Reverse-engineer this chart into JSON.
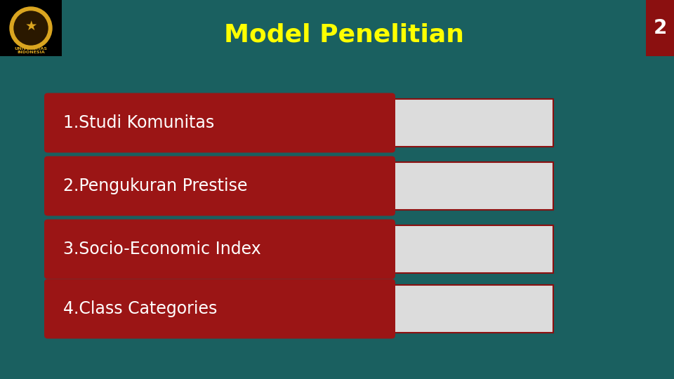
{
  "background_color": "#1a6060",
  "title": "Model Penelitian",
  "title_color": "#FFFF00",
  "title_fontsize": 26,
  "title_fontstyle": "normal",
  "title_fontweight": "bold",
  "page_number": "2",
  "page_number_bg": "#8B1010",
  "page_number_color": "#ffffff",
  "items": [
    "1.Studi Komunitas",
    "2.Pengukuran Prestise",
    "3.Socio-Economic Index",
    "4.Class Categories"
  ],
  "item_box_color": "#9B1515",
  "item_text_color": "#ffffff",
  "item_strip_color": "#dcdcdc",
  "item_strip_border": "#8B1010",
  "item_text_fontsize": 17,
  "logo_bg": "#000000",
  "logo_emblem_color": "#DAA520"
}
